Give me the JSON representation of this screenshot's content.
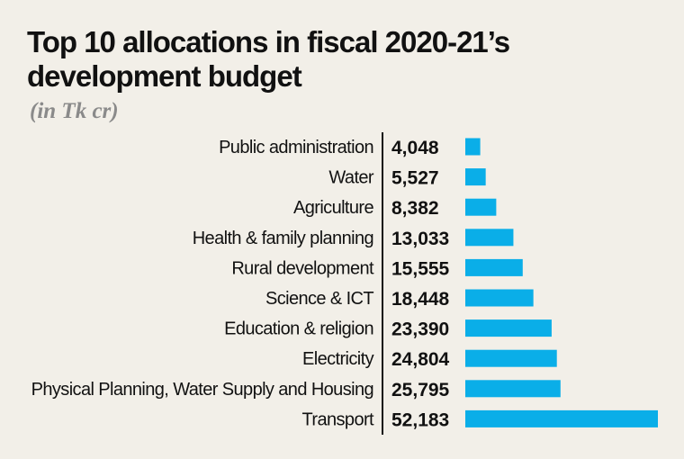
{
  "chart_data": {
    "type": "bar",
    "orientation": "horizontal",
    "title": "Top 10 allocations in fiscal 2020-21’s development budget",
    "subtitle": "(in Tk cr)",
    "categories": [
      "Public administration",
      "Water",
      "Agriculture",
      "Health & family planning",
      "Rural development",
      "Science & ICT",
      "Education & religion",
      "Electricity",
      "Physical Planning, Water Supply and Housing",
      "Transport"
    ],
    "values": [
      4048,
      5527,
      8382,
      13033,
      15555,
      18448,
      23390,
      24804,
      25795,
      52183
    ],
    "value_labels": [
      "4,048",
      "5,527",
      "8,382",
      "13,033",
      "15,555",
      "18,448",
      "23,390",
      "24,804",
      "25,795",
      "52,183"
    ],
    "xlim": [
      0,
      52183
    ],
    "grid": false,
    "bar_color": "#0aaee8"
  }
}
